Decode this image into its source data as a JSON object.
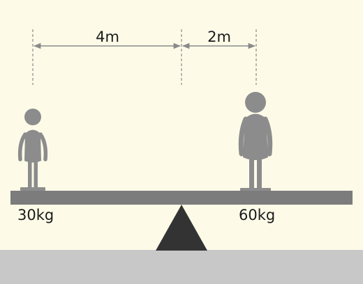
{
  "diagram": {
    "left_distance": "4m",
    "right_distance": "2m",
    "left_mass": "30kg",
    "right_mass": "60kg"
  },
  "colors": {
    "background": "#FDFBE8",
    "ground": "#C8C8C8",
    "plank": "#7C7C7C",
    "fulcrum": "#333333",
    "person": "#8C8C8C",
    "dimension_line": "#8A8A8A",
    "text": "#1A1A1A"
  }
}
